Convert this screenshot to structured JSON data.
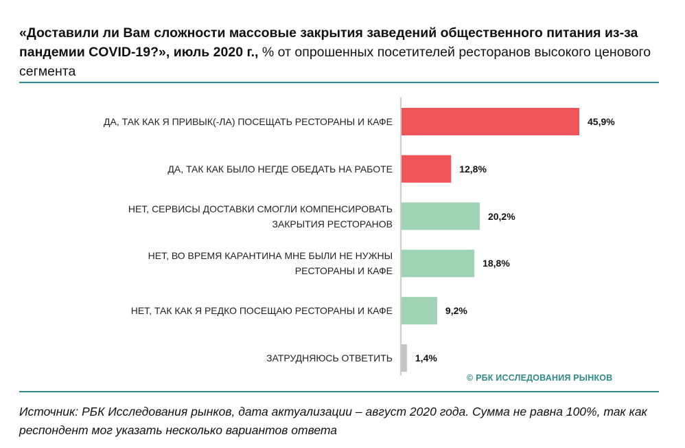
{
  "title": {
    "bold_part": "«Доставили ли Вам сложности массовые закрытия заведений общественного питания из-за пандемии COVID-19?», июль 2020 г.,",
    "normal_part": " % от опрошенных посетителей ресторанов высокого ценового сегмента"
  },
  "copyright": "© РБК ИССЛЕДОВАНИЯ РЫНКОВ",
  "source": "Источник: РБК Исследования рынков, дата актуализации – август 2020 года. Сумма не равна 100%, так как респондент мог указать несколько вариантов ответа",
  "colors": {
    "red": "#f0545b",
    "green": "#9fd3b4",
    "gray": "#c4c4c4",
    "axis": "#9a9a9a",
    "accent": "#2e8b89"
  },
  "chart_data": {
    "type": "bar",
    "orientation": "horizontal",
    "title": "«Доставили ли Вам сложности массовые закрытия заведений общественного питания из-за пандемии COVID-19?», июль 2020 г., % от опрошенных посетителей ресторанов высокого ценового сегмента",
    "xlim": [
      0,
      50
    ],
    "categories": [
      "ДА, ТАК КАК Я ПРИВЫК(-ЛА) ПОСЕЩАТЬ РЕСТОРАНЫ И КАФЕ",
      "ДА, ТАК КАК БЫЛО НЕГДЕ ОБЕДАТЬ НА РАБОТЕ",
      "НЕТ, СЕРВИСЫ ДОСТАВКИ СМОГЛИ КОМПЕНСИРОВАТЬ ЗАКРЫТИЯ РЕСТОРАНОВ",
      "НЕТ, ВО ВРЕМЯ КАРАНТИНА МНЕ БЫЛИ НЕ НУЖНЫ РЕСТОРАНЫ И КАФЕ",
      "НЕТ, ТАК КАК Я РЕДКО ПОСЕЩАЮ РЕСТОРАНЫ И КАФЕ",
      "ЗАТРУДНЯЮСЬ ОТВЕТИТЬ"
    ],
    "values": [
      45.9,
      12.8,
      20.2,
      18.8,
      9.2,
      1.4
    ],
    "value_labels": [
      "45,9%",
      "12,8%",
      "20,2%",
      "18,8%",
      "9,2%",
      "1,4%"
    ],
    "bar_colors": [
      "red",
      "red",
      "green",
      "green",
      "green",
      "gray"
    ]
  }
}
